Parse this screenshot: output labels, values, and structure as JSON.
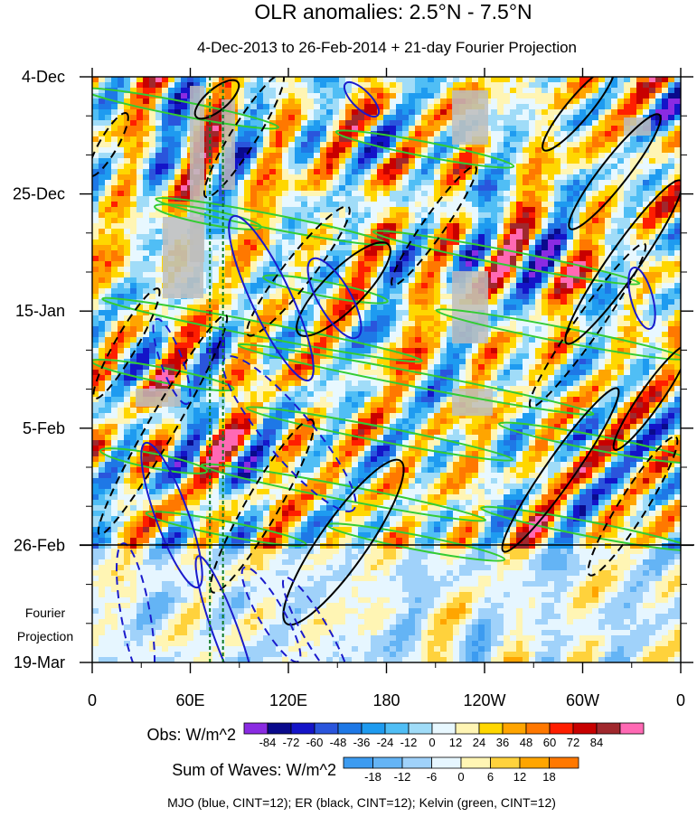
{
  "chart_data": {
    "type": "heatmap",
    "title": "OLR anomalies: 2.5°N - 7.5°N",
    "subtitle": "4-Dec-2013 to 26-Feb-2014 + 21-day Fourier Projection",
    "x_ticks": [
      "0",
      "60E",
      "120E",
      "180",
      "120W",
      "60W",
      "0"
    ],
    "x_values": [
      0,
      60,
      120,
      180,
      240,
      300,
      360
    ],
    "y_ticks": [
      "4-Dec",
      "25-Dec",
      "15-Jan",
      "5-Feb",
      "26-Feb",
      "19-Mar"
    ],
    "y_values": [
      0,
      21,
      42,
      63,
      84,
      105
    ],
    "projection_label": [
      "Fourier",
      "Projection"
    ],
    "obs_label": "Obs: W/m^2",
    "obs_levels": [
      "-84",
      "-72",
      "-60",
      "-48",
      "-36",
      "-24",
      "-12",
      "0",
      "12",
      "24",
      "36",
      "48",
      "60",
      "72",
      "84"
    ],
    "obs_colors": [
      "#8a2be2",
      "#0a0a8c",
      "#1414c8",
      "#2a55dc",
      "#1e78e6",
      "#1e9bf0",
      "#50bef5",
      "#a0dcf8",
      "#e8f8ff",
      "#fff5b4",
      "#ffd700",
      "#ffa500",
      "#ff7800",
      "#ff1e00",
      "#c80000",
      "#a0282d",
      "#ff69b4"
    ],
    "waves_label": "Sum of Waves: W/m^2",
    "waves_levels": [
      "-18",
      "-12",
      "-6",
      "0",
      "6",
      "12",
      "18"
    ],
    "waves_colors": [
      "#3c9bf0",
      "#64b4f5",
      "#a0d2fa",
      "#e6f6ff",
      "#fff5b4",
      "#ffd23c",
      "#ffa500",
      "#ff7800"
    ],
    "caption": "MJO (blue, CINT=12); ER (black, CINT=12); Kelvin (green, CINT=12)",
    "contour_colors": {
      "mjo": "#1a1acc",
      "er": "#000000",
      "kelvin": "#33cc33"
    },
    "dashed_marker_lon": [
      72,
      80
    ]
  }
}
